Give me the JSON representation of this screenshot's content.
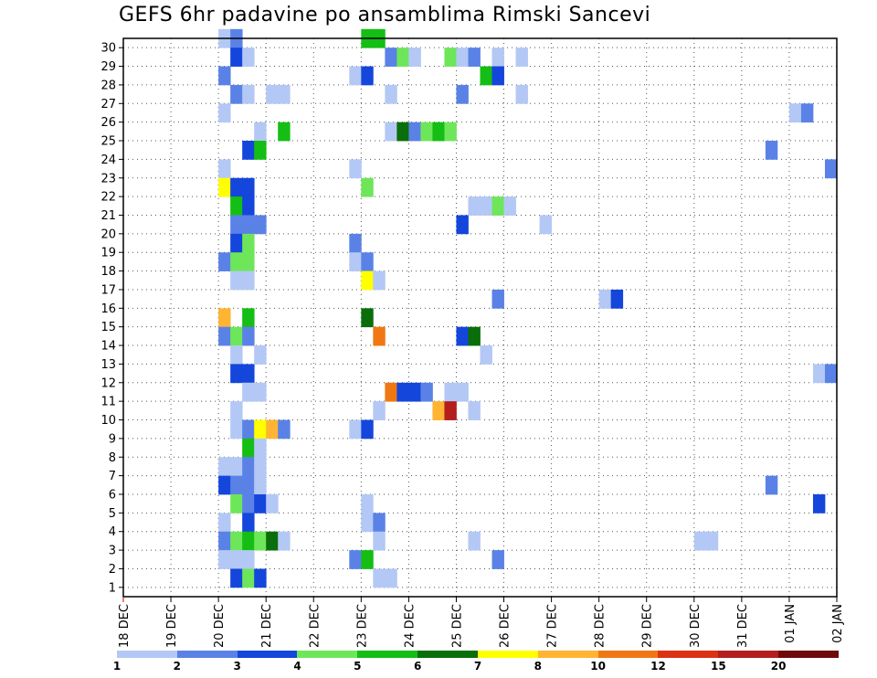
{
  "chart_data": {
    "type": "heatmap",
    "title": "GEFS 6hr padavine po ansamblima Rimski Sancevi",
    "x_tick_labels": [
      "18 DEC",
      "19 DEC",
      "20 DEC",
      "21 DEC",
      "22 DEC",
      "23 DEC",
      "24 DEC",
      "25 DEC",
      "26 DEC",
      "27 DEC",
      "28 DEC",
      "29 DEC",
      "30 DEC",
      "31 DEC",
      "01 JAN",
      "02 JAN"
    ],
    "y_tick_labels": [
      "1",
      "2",
      "3",
      "4",
      "5",
      "6",
      "7",
      "8",
      "9",
      "10",
      "11",
      "12",
      "13",
      "14",
      "15",
      "16",
      "17",
      "18",
      "19",
      "20",
      "21",
      "22",
      "23",
      "24",
      "25",
      "26",
      "27",
      "28",
      "29",
      "30"
    ],
    "x_unit": "6-hour steps after 18 DEC 00Z",
    "y_unit": "ensemble member",
    "legend": {
      "labels": [
        "1",
        "2",
        "3",
        "4",
        "5",
        "6",
        "7",
        "8",
        "10",
        "12",
        "15",
        "20"
      ],
      "colors": [
        "#b4c8f5",
        "#5a82e6",
        "#1446dc",
        "#6ee65a",
        "#14be14",
        "#0a6e0a",
        "#ffff00",
        "#ffb432",
        "#f07814",
        "#dc3214",
        "#b41e1e",
        "#6e0a0a"
      ]
    },
    "grid": true,
    "cells": [
      [
        8,
        30,
        1
      ],
      [
        9,
        30,
        2
      ],
      [
        20,
        30,
        5
      ],
      [
        21,
        30,
        5
      ],
      [
        9,
        29,
        3
      ],
      [
        10,
        29,
        1
      ],
      [
        22,
        29,
        2
      ],
      [
        23,
        29,
        4
      ],
      [
        24,
        29,
        1
      ],
      [
        27,
        29,
        4
      ],
      [
        28,
        29,
        1
      ],
      [
        29,
        29,
        2
      ],
      [
        31,
        29,
        1
      ],
      [
        33,
        29,
        1
      ],
      [
        8,
        28,
        2
      ],
      [
        19,
        28,
        1
      ],
      [
        20,
        28,
        3
      ],
      [
        30,
        28,
        5
      ],
      [
        31,
        28,
        3
      ],
      [
        9,
        27,
        2
      ],
      [
        10,
        27,
        1
      ],
      [
        12,
        27,
        1
      ],
      [
        13,
        27,
        1
      ],
      [
        22,
        27,
        1
      ],
      [
        28,
        27,
        2
      ],
      [
        33,
        27,
        1
      ],
      [
        8,
        26,
        1
      ],
      [
        56,
        26,
        1
      ],
      [
        57,
        26,
        2
      ],
      [
        11,
        25,
        1
      ],
      [
        13,
        25,
        5
      ],
      [
        22,
        25,
        1
      ],
      [
        23,
        25,
        6
      ],
      [
        24,
        25,
        2
      ],
      [
        25,
        25,
        4
      ],
      [
        26,
        25,
        5
      ],
      [
        27,
        25,
        4
      ],
      [
        10,
        24,
        3
      ],
      [
        11,
        24,
        5
      ],
      [
        54,
        24,
        2
      ],
      [
        8,
        23,
        1
      ],
      [
        19,
        23,
        1
      ],
      [
        59,
        23,
        2
      ],
      [
        8,
        22,
        7
      ],
      [
        9,
        22,
        3
      ],
      [
        10,
        22,
        3
      ],
      [
        20,
        22,
        4
      ],
      [
        9,
        21,
        5
      ],
      [
        10,
        21,
        3
      ],
      [
        29,
        21,
        1
      ],
      [
        30,
        21,
        1
      ],
      [
        31,
        21,
        4
      ],
      [
        32,
        21,
        1
      ],
      [
        9,
        20,
        2
      ],
      [
        10,
        20,
        2
      ],
      [
        11,
        20,
        2
      ],
      [
        28,
        20,
        3
      ],
      [
        35,
        20,
        1
      ],
      [
        9,
        19,
        3
      ],
      [
        10,
        19,
        4
      ],
      [
        19,
        19,
        2
      ],
      [
        8,
        18,
        2
      ],
      [
        9,
        18,
        4
      ],
      [
        10,
        18,
        4
      ],
      [
        19,
        18,
        1
      ],
      [
        20,
        18,
        2
      ],
      [
        9,
        17,
        1
      ],
      [
        10,
        17,
        1
      ],
      [
        20,
        17,
        7
      ],
      [
        21,
        17,
        1
      ],
      [
        31,
        16,
        2
      ],
      [
        40,
        16,
        1
      ],
      [
        41,
        16,
        3
      ],
      [
        8,
        15,
        8
      ],
      [
        10,
        15,
        5
      ],
      [
        20,
        15,
        6
      ],
      [
        8,
        14,
        2
      ],
      [
        9,
        14,
        4
      ],
      [
        10,
        14,
        2
      ],
      [
        21,
        14,
        9
      ],
      [
        28,
        14,
        3
      ],
      [
        29,
        14,
        6
      ],
      [
        9,
        13,
        1
      ],
      [
        11,
        13,
        1
      ],
      [
        30,
        13,
        1
      ],
      [
        9,
        12,
        3
      ],
      [
        10,
        12,
        3
      ],
      [
        58,
        12,
        1
      ],
      [
        59,
        12,
        2
      ],
      [
        10,
        11,
        1
      ],
      [
        11,
        11,
        1
      ],
      [
        22,
        11,
        9
      ],
      [
        23,
        11,
        3
      ],
      [
        24,
        11,
        3
      ],
      [
        25,
        11,
        2
      ],
      [
        27,
        11,
        1
      ],
      [
        28,
        11,
        1
      ],
      [
        9,
        10,
        1
      ],
      [
        21,
        10,
        1
      ],
      [
        26,
        10,
        8
      ],
      [
        27,
        10,
        11
      ],
      [
        29,
        10,
        1
      ],
      [
        9,
        9,
        1
      ],
      [
        10,
        9,
        2
      ],
      [
        11,
        9,
        7
      ],
      [
        12,
        9,
        8
      ],
      [
        13,
        9,
        2
      ],
      [
        19,
        9,
        1
      ],
      [
        20,
        9,
        3
      ],
      [
        10,
        8,
        5
      ],
      [
        11,
        8,
        1
      ],
      [
        8,
        7,
        1
      ],
      [
        9,
        7,
        1
      ],
      [
        10,
        7,
        2
      ],
      [
        11,
        7,
        1
      ],
      [
        8,
        6,
        3
      ],
      [
        9,
        6,
        2
      ],
      [
        10,
        6,
        2
      ],
      [
        11,
        6,
        1
      ],
      [
        54,
        6,
        2
      ],
      [
        9,
        5,
        4
      ],
      [
        10,
        5,
        2
      ],
      [
        11,
        5,
        3
      ],
      [
        12,
        5,
        1
      ],
      [
        20,
        5,
        1
      ],
      [
        58,
        5,
        3
      ],
      [
        8,
        4,
        1
      ],
      [
        10,
        4,
        3
      ],
      [
        20,
        4,
        1
      ],
      [
        21,
        4,
        2
      ],
      [
        8,
        3,
        2
      ],
      [
        9,
        3,
        4
      ],
      [
        10,
        3,
        5
      ],
      [
        11,
        3,
        4
      ],
      [
        12,
        3,
        6
      ],
      [
        13,
        3,
        1
      ],
      [
        21,
        3,
        1
      ],
      [
        29,
        3,
        1
      ],
      [
        48,
        3,
        1
      ],
      [
        49,
        3,
        1
      ],
      [
        8,
        2,
        1
      ],
      [
        9,
        2,
        1
      ],
      [
        10,
        2,
        1
      ],
      [
        19,
        2,
        2
      ],
      [
        20,
        2,
        5
      ],
      [
        31,
        2,
        2
      ],
      [
        9,
        1,
        3
      ],
      [
        10,
        1,
        4
      ],
      [
        11,
        1,
        3
      ],
      [
        21,
        1,
        1
      ],
      [
        22,
        1,
        1
      ]
    ]
  }
}
